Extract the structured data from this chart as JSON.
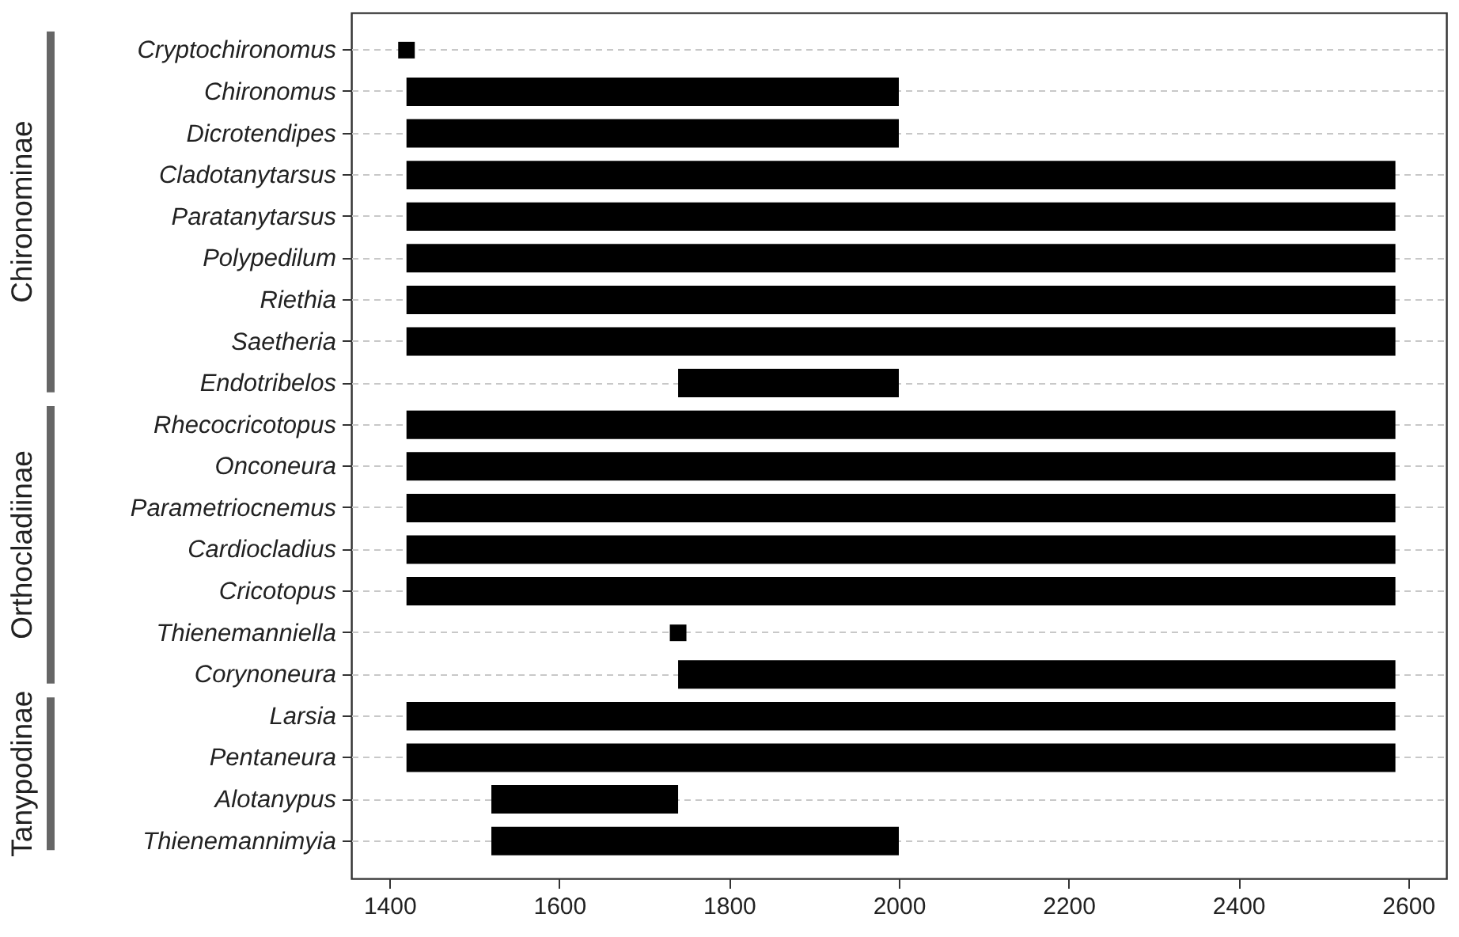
{
  "chart_data": {
    "type": "bar",
    "orientation": "horizontal",
    "categories": [
      "Cryptochironomus",
      "Chironomus",
      "Dicrotendipes",
      "Cladotanytarsus",
      "Paratanytarsus",
      "Polypedilum",
      "Riethia",
      "Saetheria",
      "Endotribelos",
      "Rhecocricotopus",
      "Onconeura",
      "Parametriocnemus",
      "Cardiocladius",
      "Cricotopus",
      "Thienemanniella",
      "Corynoneura",
      "Larsia",
      "Pentaneura",
      "Alotanypus",
      "Thienemannimyia"
    ],
    "series": [
      {
        "color": "#000000",
        "base": [
          null,
          1420,
          1420,
          1420,
          1420,
          1420,
          1420,
          1420,
          1740,
          1420,
          1420,
          1420,
          1420,
          1420,
          null,
          1740,
          1420,
          1420,
          1520,
          1520
        ],
        "values": [
          null,
          580,
          580,
          1165,
          1165,
          1165,
          1165,
          1165,
          260,
          1165,
          1165,
          1165,
          1165,
          1165,
          null,
          845,
          1165,
          1165,
          220,
          480
        ]
      },
      {
        "type": "scatter",
        "marker": "square",
        "color": "#000000",
        "values": [
          1420,
          null,
          null,
          null,
          null,
          null,
          null,
          null,
          null,
          null,
          null,
          null,
          null,
          null,
          1740,
          null,
          null,
          null,
          null,
          null
        ]
      }
    ],
    "xlim": [
      1355,
      2645
    ],
    "xticks": [
      1400,
      1600,
      1800,
      2000,
      2200,
      2400,
      2600
    ],
    "grid": "y",
    "annotations": [
      "Chironominae",
      "Orthocladiinae",
      "Tanypodinae"
    ]
  }
}
